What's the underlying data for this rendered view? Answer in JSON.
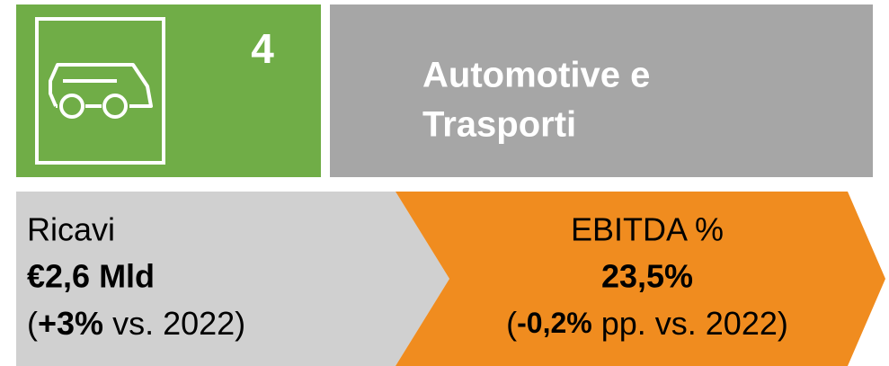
{
  "header": {
    "number": "4",
    "title_lines": [
      "Automotive e",
      "Trasporti"
    ]
  },
  "metrics": [
    {
      "label": "Ricavi",
      "value": "€2,6 Mld",
      "change": [
        "(",
        "+3%",
        " vs. 2022)"
      ]
    },
    {
      "label": "EBITDA %",
      "value": "23,5%",
      "change": [
        "(",
        "-0,2%",
        " pp. vs. 2022)"
      ]
    }
  ]
}
